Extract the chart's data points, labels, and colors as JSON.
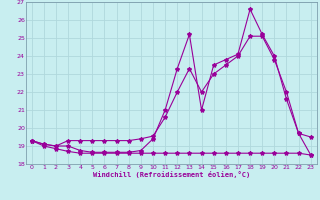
{
  "xlabel": "Windchill (Refroidissement éolien,°C)",
  "background_color": "#c8eef0",
  "grid_color": "#b0d8dc",
  "line_color": "#990099",
  "spine_color": "#7090a0",
  "xlim": [
    -0.5,
    23.5
  ],
  "ylim": [
    18,
    27
  ],
  "xticks": [
    0,
    1,
    2,
    3,
    4,
    5,
    6,
    7,
    8,
    9,
    10,
    11,
    12,
    13,
    14,
    15,
    16,
    17,
    18,
    19,
    20,
    21,
    22,
    23
  ],
  "yticks": [
    18,
    19,
    20,
    21,
    22,
    23,
    24,
    25,
    26,
    27
  ],
  "line1_x": [
    0,
    1,
    2,
    3,
    4,
    5,
    6,
    7,
    8,
    9,
    10,
    11,
    12,
    13,
    14,
    15,
    16,
    17,
    18,
    19,
    20,
    21,
    22,
    23
  ],
  "line1_y": [
    19.3,
    19.1,
    19.0,
    19.0,
    18.75,
    18.65,
    18.65,
    18.65,
    18.65,
    18.75,
    19.4,
    21.0,
    23.3,
    25.2,
    21.0,
    23.5,
    23.8,
    24.1,
    26.6,
    25.2,
    24.0,
    21.6,
    19.7,
    19.5
  ],
  "line2_x": [
    0,
    1,
    2,
    3,
    4,
    5,
    6,
    7,
    8,
    9,
    10,
    11,
    12,
    13,
    14,
    15,
    16,
    17,
    18,
    19,
    20,
    21,
    22,
    23
  ],
  "line2_y": [
    19.3,
    19.1,
    19.0,
    19.3,
    19.3,
    19.3,
    19.3,
    19.3,
    19.3,
    19.4,
    19.55,
    20.6,
    22.0,
    23.3,
    22.0,
    23.0,
    23.5,
    24.0,
    25.1,
    25.1,
    23.8,
    22.0,
    19.7,
    18.5
  ],
  "line3_x": [
    0,
    1,
    2,
    3,
    4,
    5,
    6,
    7,
    8,
    9,
    10,
    11,
    12,
    13,
    14,
    15,
    16,
    17,
    18,
    19,
    20,
    21,
    22,
    23
  ],
  "line3_y": [
    19.3,
    19.0,
    18.85,
    18.7,
    18.6,
    18.6,
    18.6,
    18.6,
    18.6,
    18.6,
    18.6,
    18.6,
    18.6,
    18.6,
    18.6,
    18.6,
    18.6,
    18.6,
    18.6,
    18.6,
    18.6,
    18.6,
    18.6,
    18.5
  ]
}
